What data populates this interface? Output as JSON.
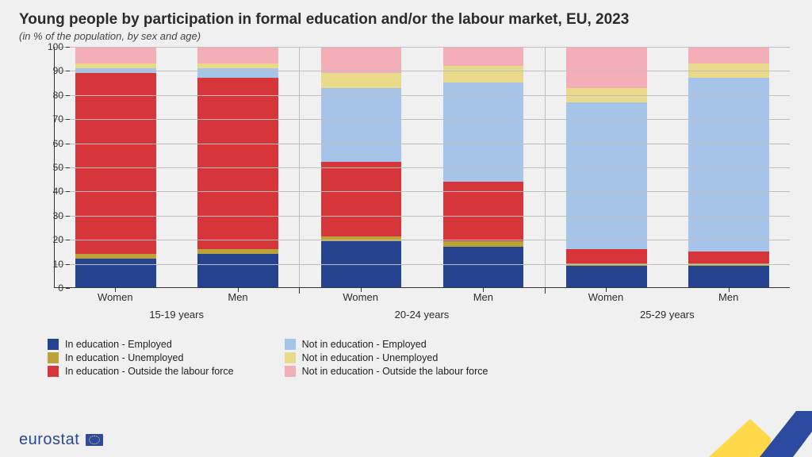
{
  "title": "Young people by participation in formal education and/or the labour market, EU, 2023",
  "subtitle": "(in % of the population, by sex and age)",
  "chart": {
    "type": "stacked-bar",
    "ylim": [
      0,
      100
    ],
    "ytick_step": 10,
    "grid_color": "#bfbfbf",
    "axis_color": "#333333",
    "background": "#f0f0f0",
    "series": [
      {
        "key": "ed_emp",
        "label": "In education - Employed",
        "color": "#25438f"
      },
      {
        "key": "ed_unemp",
        "label": "In education - Unemployed",
        "color": "#bba33a"
      },
      {
        "key": "ed_olf",
        "label": "In education - Outside the labour force",
        "color": "#d6363a"
      },
      {
        "key": "ne_emp",
        "label": "Not in education - Employed",
        "color": "#a6c3ea"
      },
      {
        "key": "ne_unemp",
        "label": "Not in education - Unemployed",
        "color": "#e9d98a"
      },
      {
        "key": "ne_olf",
        "label": "Not in education - Outside the labour force",
        "color": "#f4aeb8"
      }
    ],
    "groups": [
      {
        "label": "15-19 years",
        "bars": [
          {
            "label": "Women",
            "values": {
              "ed_emp": 12,
              "ed_unemp": 2,
              "ed_olf": 75,
              "ne_emp": 2,
              "ne_unemp": 2,
              "ne_olf": 7
            }
          },
          {
            "label": "Men",
            "values": {
              "ed_emp": 14,
              "ed_unemp": 2,
              "ed_olf": 71,
              "ne_emp": 4,
              "ne_unemp": 2,
              "ne_olf": 7
            }
          }
        ]
      },
      {
        "label": "20-24 years",
        "bars": [
          {
            "label": "Women",
            "values": {
              "ed_emp": 19,
              "ed_unemp": 2,
              "ed_olf": 31,
              "ne_emp": 31,
              "ne_unemp": 6,
              "ne_olf": 11
            }
          },
          {
            "label": "Men",
            "values": {
              "ed_emp": 17,
              "ed_unemp": 2,
              "ed_olf": 25,
              "ne_emp": 41,
              "ne_unemp": 7,
              "ne_olf": 8
            }
          }
        ]
      },
      {
        "label": "25-29 years",
        "bars": [
          {
            "label": "Women",
            "values": {
              "ed_emp": 9,
              "ed_unemp": 1,
              "ed_olf": 6,
              "ne_emp": 61,
              "ne_unemp": 6,
              "ne_olf": 17
            }
          },
          {
            "label": "Men",
            "values": {
              "ed_emp": 9,
              "ed_unemp": 1,
              "ed_olf": 5,
              "ne_emp": 72,
              "ne_unemp": 6,
              "ne_olf": 7
            }
          }
        ]
      }
    ]
  },
  "footer": {
    "brand": "eurostat"
  },
  "deco_colors": {
    "blue": "#2b4aa0",
    "yellow": "#ffd94a",
    "grey": "#c9c9c9"
  }
}
